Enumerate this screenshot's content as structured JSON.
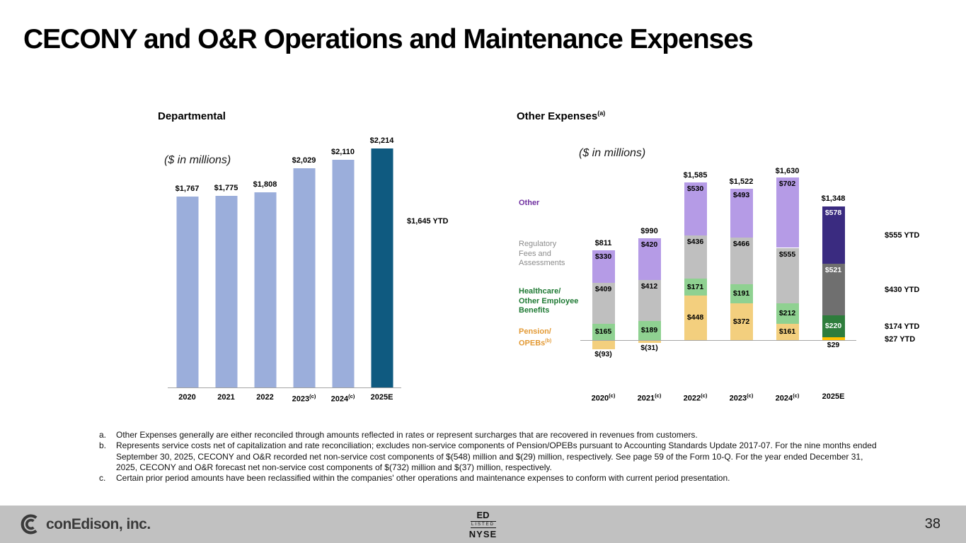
{
  "slide": {
    "title": "CECONY and O&R Operations and Maintenance Expenses",
    "page_number": "38"
  },
  "departmental": {
    "title": "Departmental",
    "units": "($ in millions)",
    "ytd": "$1,645 YTD"
  },
  "other_expenses": {
    "title": "Other Expenses",
    "title_sup": "(a)",
    "units": "($ in millions)",
    "legend_other": "Other",
    "legend_regulatory": "Regulatory\nFees and\nAssessments",
    "legend_healthcare": "Healthcare/\nOther Employee\nBenefits",
    "legend_pension": "Pension/\nOPEBs",
    "legend_pension_sup": "(b)"
  },
  "footnotes": [
    {
      "marker": "a.",
      "text": "Other Expenses generally are either reconciled through amounts reflected in rates or represent surcharges that are recovered in revenues from customers."
    },
    {
      "marker": "b.",
      "text": "Represents service costs net of capitalization and rate reconciliation; excludes non-service components of Pension/OPEBs pursuant to Accounting Standards Update 2017-07. For the nine months ended September 30, 2025, CECONY and O&R recorded net non-service cost components of $(548) million and $(29) million, respectively. See page 59 of the Form 10-Q. For the year ended December 31, 2025, CECONY and O&R forecast net non-service cost components of $(732) million and $(37) million, respectively."
    },
    {
      "marker": "c.",
      "text": "Certain prior period amounts have been reclassified within the companies' other operations and maintenance expenses to conform with current period presentation."
    }
  ],
  "footer": {
    "brand": "conEdison, inc.",
    "nyse_ticker": "ED",
    "nyse_listed": "LISTED",
    "nyse_exchange": "NYSE"
  },
  "chart_data": [
    {
      "type": "bar",
      "title": "Departmental",
      "ylabel": "$ in millions",
      "categories": [
        "2020",
        "2021",
        "2022",
        "2023",
        "2024",
        "2025E"
      ],
      "category_sups": [
        "",
        "",
        "",
        "(c)",
        "(c)",
        ""
      ],
      "values": [
        1767,
        1775,
        1808,
        2029,
        2110,
        2214
      ],
      "value_labels": [
        "$1,767",
        "$1,775",
        "$1,808",
        "$2,029",
        "$2,110",
        "$2,214"
      ],
      "ytd_value": 1645,
      "ytd_label": "$1,645 YTD",
      "bar_color": "#9BAEDB",
      "last_bar_color": "#0F5A80",
      "grid": false,
      "legend_position": "none"
    },
    {
      "type": "stacked-bar",
      "title": "Other Expenses (a)",
      "ylabel": "$ in millions",
      "categories": [
        "2020",
        "2021",
        "2022",
        "2023",
        "2024",
        "2025E"
      ],
      "category_sups": [
        "(c)",
        "(c)",
        "(c)",
        "(c)",
        "(c)",
        ""
      ],
      "series": [
        {
          "key": "pension-opebs",
          "name": "Pension/OPEBs (b)",
          "color": "#F3CF7E",
          "last_color": "#FFC000",
          "label_pos": "center",
          "last_label_color": "#000000",
          "legend_color": "#E39A35",
          "values": [
            -93,
            -31,
            448,
            372,
            161,
            29
          ],
          "labels": [
            "$(93)",
            "$(31)",
            "$448",
            "$372",
            "$161",
            "$29"
          ]
        },
        {
          "key": "healthcare-benefits",
          "name": "Healthcare/Other Employee Benefits",
          "color": "#8FD191",
          "last_color": "#2E7D3C",
          "label_pos": "center",
          "last_label_color": "#FFFFFF",
          "legend_color": "#1F7A34",
          "values": [
            165,
            189,
            171,
            191,
            212,
            220
          ],
          "labels": [
            "$165",
            "$189",
            "$171",
            "$191",
            "$212",
            "$220"
          ]
        },
        {
          "key": "regulatory-fees",
          "name": "Regulatory Fees and Assessments",
          "color": "#BFBFBF",
          "last_color": "#6F6F6F",
          "label_pos": "top",
          "last_label_color": "#FFFFFF",
          "legend_color": "#8C8C8C",
          "values": [
            409,
            412,
            436,
            466,
            555,
            521
          ],
          "labels": [
            "$409",
            "$412",
            "$436",
            "$466",
            "$555",
            "$521"
          ]
        },
        {
          "key": "other",
          "name": "Other",
          "color": "#B59BE6",
          "last_color": "#3A2B80",
          "label_pos": "top",
          "last_label_color": "#FFFFFF",
          "legend_color": "#7030A0",
          "values": [
            330,
            420,
            530,
            493,
            702,
            578
          ],
          "labels": [
            "$330",
            "$420",
            "$530",
            "$493",
            "$702",
            "$578"
          ]
        }
      ],
      "totals": [
        811,
        990,
        1585,
        1522,
        1630,
        1348
      ],
      "total_labels": [
        "$811",
        "$990",
        "$1,585",
        "$1,522",
        "$1,630",
        "$1,348"
      ],
      "ytd_labels": [
        "$555 YTD",
        "$430 YTD",
        "$174 YTD",
        "$27 YTD"
      ],
      "grid": false,
      "legend_position": "left"
    }
  ]
}
